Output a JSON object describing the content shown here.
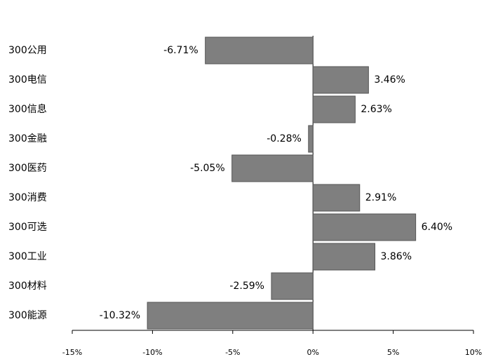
{
  "chart_data": {
    "type": "hbar",
    "categories": [
      "300公用",
      "300电信",
      "300信息",
      "300金融",
      "300医药",
      "300消费",
      "300可选",
      "300工业",
      "300材料",
      "300能源"
    ],
    "values": [
      -6.71,
      3.46,
      2.63,
      -0.28,
      -5.05,
      2.91,
      6.4,
      3.86,
      -2.59,
      -10.32
    ],
    "value_labels": [
      "-6.71%",
      "3.46%",
      "2.63%",
      "-0.28%",
      "-5.05%",
      "2.91%",
      "6.40%",
      "3.86%",
      "-2.59%",
      "-10.32%"
    ],
    "color": "#7f7f7f",
    "xlim": [
      -15,
      10
    ],
    "xticks": [
      {
        "value": -15,
        "label": "-15%"
      },
      {
        "value": -10,
        "label": "-10%"
      },
      {
        "value": -5,
        "label": "-5%"
      },
      {
        "value": 0,
        "label": "0%"
      },
      {
        "value": 5,
        "label": "5%"
      },
      {
        "value": 10,
        "label": "10%"
      }
    ]
  }
}
